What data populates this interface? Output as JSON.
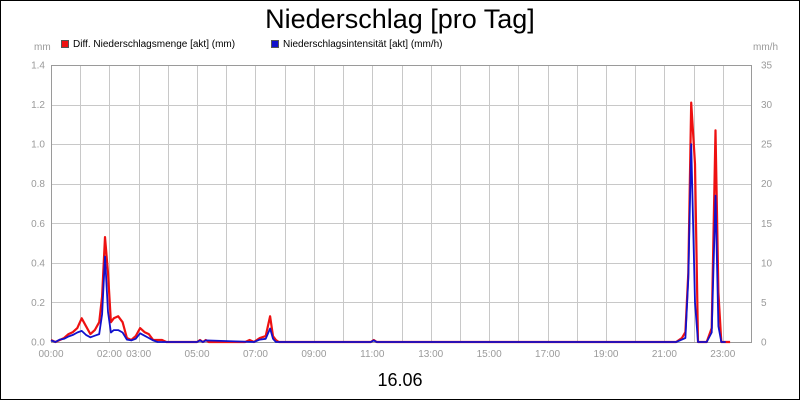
{
  "chart_data": {
    "type": "line",
    "title": "Niederschlag [pro Tag]",
    "xlabel": "16.06",
    "left_axis_unit": "mm",
    "right_axis_unit": "mm/h",
    "grid": true,
    "legend_position": "top-left",
    "x_ticks": [
      "00:00",
      "02:00",
      "03:00",
      "05:00",
      "07:00",
      "09:00",
      "11:00",
      "13:00",
      "15:00",
      "17:00",
      "19:00",
      "21:00",
      "23:00"
    ],
    "x_tick_hours": [
      0,
      2,
      3,
      5,
      7,
      9,
      11,
      13,
      15,
      17,
      19,
      21,
      23
    ],
    "x_range_hours": [
      0,
      24.0
    ],
    "y_left": {
      "range": [
        0,
        1.4
      ],
      "ticks": [
        "0.0",
        "0.2",
        "0.4",
        "0.6",
        "0.8",
        "1.0",
        "1.2",
        "1.4"
      ]
    },
    "y_right": {
      "range": [
        0,
        35
      ],
      "ticks": [
        "0",
        "5",
        "10",
        "15",
        "20",
        "25",
        "30",
        "35"
      ]
    },
    "series": [
      {
        "name": "Diff. Niederschlagsmenge [akt] (mm)",
        "axis": "left",
        "color": "#ee1111",
        "x": [
          0,
          0.15,
          0.3,
          0.45,
          0.6,
          0.75,
          0.9,
          1.05,
          1.2,
          1.35,
          1.5,
          1.65,
          1.75,
          1.85,
          1.95,
          2.05,
          2.15,
          2.3,
          2.45,
          2.6,
          2.75,
          2.9,
          3.05,
          3.2,
          3.35,
          3.5,
          3.65,
          3.8,
          3.95,
          5.0,
          5.1,
          5.2,
          5.3,
          5.4,
          6.65,
          6.8,
          6.95,
          7.15,
          7.35,
          7.5,
          7.6,
          7.7,
          7.8,
          10.95,
          11.05,
          11.15,
          21.4,
          21.6,
          21.72,
          21.82,
          21.92,
          22.05,
          22.15,
          22.25,
          22.45,
          22.62,
          22.75,
          22.85,
          22.95,
          23.1,
          23.25
        ],
        "values": [
          0.01,
          0.0,
          0.01,
          0.02,
          0.04,
          0.05,
          0.07,
          0.12,
          0.08,
          0.04,
          0.06,
          0.1,
          0.23,
          0.53,
          0.35,
          0.1,
          0.12,
          0.13,
          0.1,
          0.02,
          0.01,
          0.03,
          0.07,
          0.05,
          0.04,
          0.01,
          0.01,
          0.01,
          0.0,
          0.0,
          0.01,
          0.0,
          0.01,
          0.0,
          0.0,
          0.01,
          0.0,
          0.02,
          0.03,
          0.13,
          0.03,
          0.01,
          0.0,
          0.0,
          0.01,
          0.0,
          0.0,
          0.02,
          0.05,
          0.35,
          1.21,
          0.9,
          0.0,
          0.0,
          0.0,
          0.07,
          1.07,
          0.25,
          0.0,
          0.0,
          0.0
        ]
      },
      {
        "name": "Niederschlagsintensität [akt] (mm/h)",
        "axis": "right",
        "color": "#1111cc",
        "x": [
          0,
          0.15,
          0.3,
          0.45,
          0.6,
          0.75,
          0.9,
          1.05,
          1.2,
          1.35,
          1.5,
          1.65,
          1.75,
          1.85,
          1.95,
          2.05,
          2.15,
          2.3,
          2.45,
          2.6,
          2.75,
          2.9,
          3.05,
          3.2,
          3.35,
          3.5,
          3.65,
          5.0,
          5.1,
          5.2,
          5.3,
          6.95,
          7.15,
          7.35,
          7.5,
          7.6,
          7.7,
          10.95,
          11.05,
          11.15,
          21.4,
          21.6,
          21.72,
          21.82,
          21.92,
          22.05,
          22.15,
          22.25,
          22.45,
          22.62,
          22.75,
          22.85,
          22.95,
          23.1
        ],
        "values": [
          0.2,
          0.0,
          0.3,
          0.4,
          0.7,
          0.9,
          1.2,
          1.4,
          0.9,
          0.6,
          0.8,
          1.0,
          3.5,
          10.8,
          3.8,
          1.2,
          1.5,
          1.5,
          1.2,
          0.3,
          0.2,
          0.4,
          1.1,
          0.8,
          0.5,
          0.2,
          0.0,
          0.0,
          0.2,
          0.0,
          0.2,
          0.0,
          0.3,
          0.4,
          1.7,
          0.4,
          0.0,
          0.0,
          0.2,
          0.0,
          0.0,
          0.3,
          0.5,
          8.0,
          25.0,
          5.0,
          0.0,
          0.0,
          0.0,
          1.2,
          18.5,
          2.0,
          0.0,
          0.0
        ]
      }
    ]
  }
}
